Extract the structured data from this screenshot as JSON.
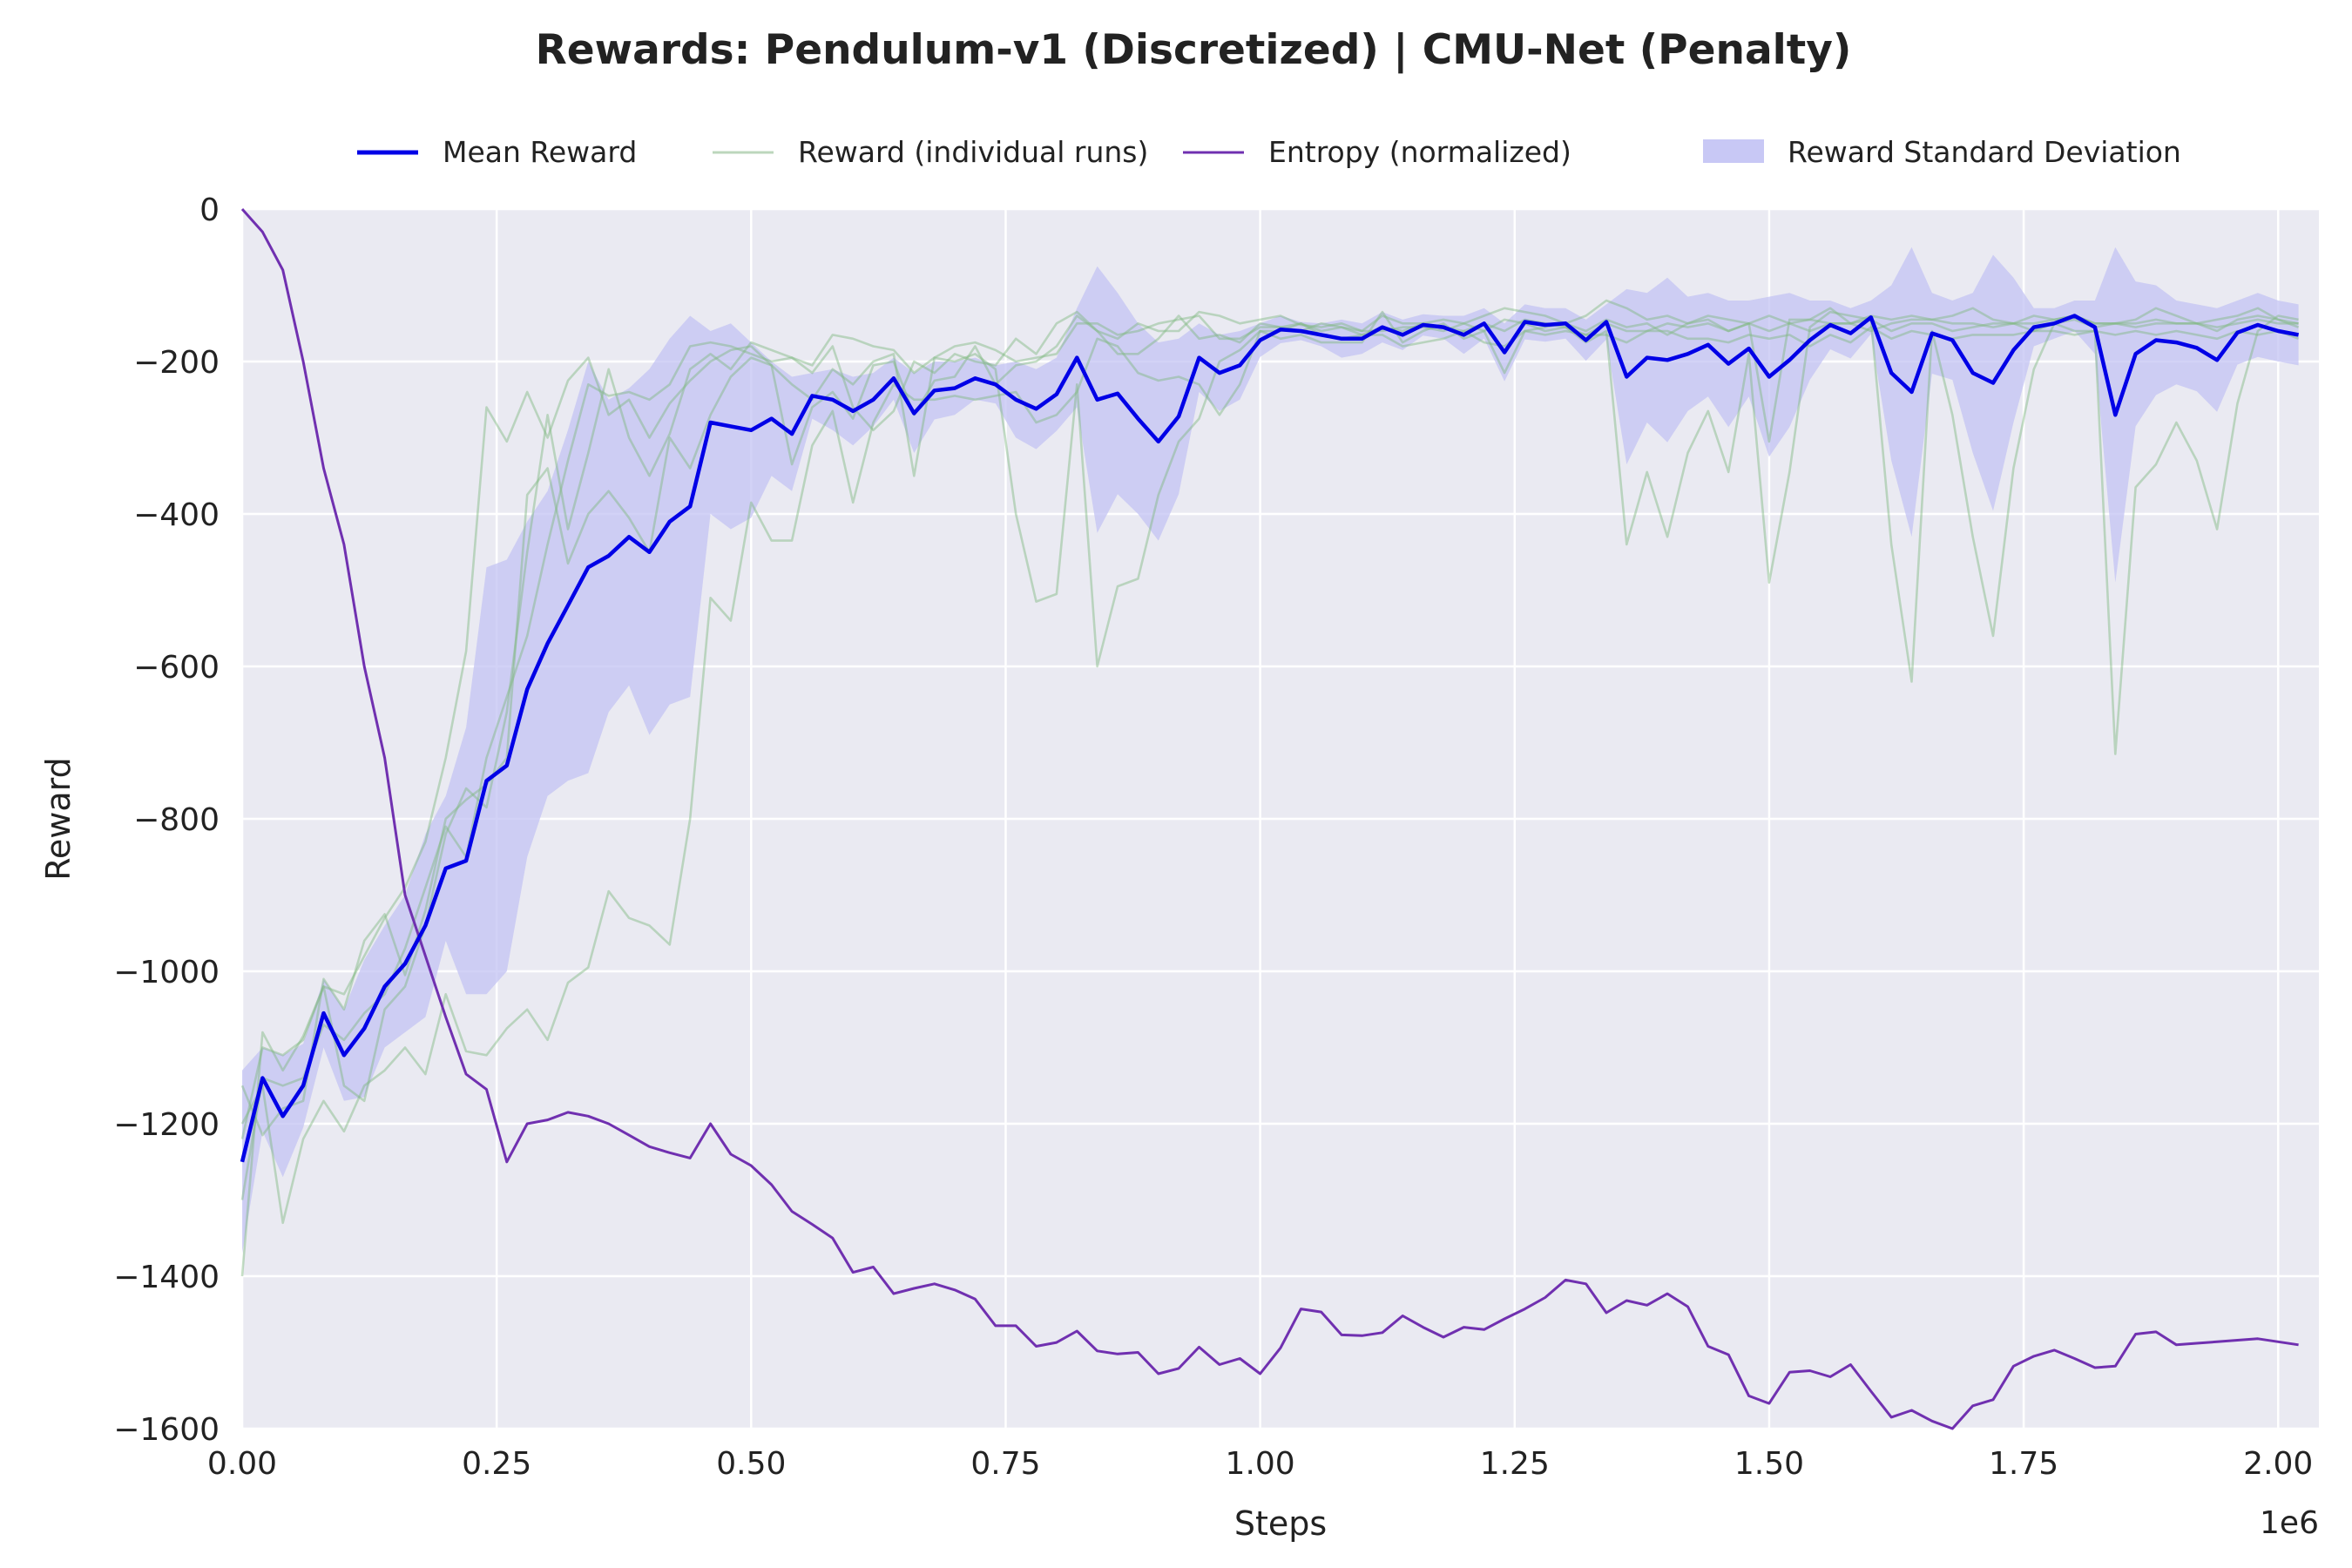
{
  "chart_data": {
    "type": "line",
    "title": "Rewards: Pendulum-v1 (Discretized) | CMU-Net (Penalty)",
    "xlabel": "Steps",
    "ylabel": "Reward",
    "x_offset_label": "1e6",
    "xlim": [
      0,
      2.04
    ],
    "ylim": [
      -1600,
      0
    ],
    "x_unit": "1e6 steps",
    "grid": true,
    "legend_position": "top-center",
    "xticks": [
      {
        "value": 0.0,
        "label": "0.00"
      },
      {
        "value": 0.25,
        "label": "0.25"
      },
      {
        "value": 0.5,
        "label": "0.50"
      },
      {
        "value": 0.75,
        "label": "0.75"
      },
      {
        "value": 1.0,
        "label": "1.00"
      },
      {
        "value": 1.25,
        "label": "1.25"
      },
      {
        "value": 1.5,
        "label": "1.50"
      },
      {
        "value": 1.75,
        "label": "1.75"
      },
      {
        "value": 2.0,
        "label": "2.00"
      }
    ],
    "yticks": [
      {
        "value": 0,
        "label": "0"
      },
      {
        "value": -200,
        "label": "−200"
      },
      {
        "value": -400,
        "label": "−400"
      },
      {
        "value": -600,
        "label": "−600"
      },
      {
        "value": -800,
        "label": "−800"
      },
      {
        "value": -1000,
        "label": "−1000"
      },
      {
        "value": -1200,
        "label": "−1200"
      },
      {
        "value": -1400,
        "label": "−1400"
      },
      {
        "value": -1600,
        "label": "−1600"
      }
    ],
    "legend": [
      {
        "label": "Mean Reward",
        "kind": "line",
        "color": "#0000e6"
      },
      {
        "label": "Reward (individual runs)",
        "kind": "line",
        "color": "#8fbc8f"
      },
      {
        "label": "Entropy (normalized)",
        "kind": "line",
        "color": "#7030b0"
      },
      {
        "label": "Reward Standard Deviation",
        "kind": "band",
        "color": "#c8c8f5"
      }
    ],
    "colors": {
      "mean": "#0000e6",
      "runs": "#7fb87f",
      "entropy": "#7030b0",
      "band": "#c3c3f3",
      "plot_bg": "#eaeaf2",
      "grid": "#ffffff"
    },
    "mean_reward": {
      "x": [
        0.0,
        0.02,
        0.04,
        0.06,
        0.08,
        0.1,
        0.12,
        0.14,
        0.16,
        0.18,
        0.2,
        0.22,
        0.24,
        0.26,
        0.28,
        0.3,
        0.32,
        0.34,
        0.36,
        0.38,
        0.4,
        0.42,
        0.44,
        0.46,
        0.48,
        0.5,
        0.52,
        0.54,
        0.56,
        0.58,
        0.6,
        0.62,
        0.64,
        0.66,
        0.68,
        0.7,
        0.72,
        0.74,
        0.76,
        0.78,
        0.8,
        0.82,
        0.84,
        0.86,
        0.88,
        0.9,
        0.92,
        0.94,
        0.96,
        0.98,
        1.0,
        1.02,
        1.04,
        1.06,
        1.08,
        1.1,
        1.12,
        1.14,
        1.16,
        1.18,
        1.2,
        1.22,
        1.24,
        1.26,
        1.28,
        1.3,
        1.32,
        1.34,
        1.36,
        1.38,
        1.4,
        1.42,
        1.44,
        1.46,
        1.48,
        1.5,
        1.52,
        1.54,
        1.56,
        1.58,
        1.6,
        1.62,
        1.64,
        1.66,
        1.68,
        1.7,
        1.72,
        1.74,
        1.76,
        1.78,
        1.8,
        1.82,
        1.84,
        1.86,
        1.88,
        1.9,
        1.92,
        1.94,
        1.96,
        1.98,
        2.0,
        2.02
      ],
      "y": [
        -1250,
        -1140,
        -1190,
        -1150,
        -1055,
        -1110,
        -1075,
        -1020,
        -990,
        -940,
        -865,
        -855,
        -750,
        -730,
        -630,
        -570,
        -520,
        -470,
        -455,
        -430,
        -450,
        -410,
        -390,
        -280,
        -285,
        -290,
        -275,
        -295,
        -245,
        -250,
        -265,
        -250,
        -222,
        -268,
        -238,
        -235,
        -222,
        -230,
        -250,
        -262,
        -243,
        -195,
        -250,
        -242,
        -275,
        -305,
        -272,
        -195,
        -215,
        -205,
        -172,
        -158,
        -160,
        -165,
        -170,
        -170,
        -155,
        -165,
        -152,
        -155,
        -165,
        -150,
        -188,
        -148,
        -152,
        -150,
        -172,
        -148,
        -220,
        -195,
        -198,
        -190,
        -178,
        -203,
        -183,
        -220,
        -198,
        -172,
        -152,
        -163,
        -142,
        -215,
        -240,
        -163,
        -172,
        -215,
        -228,
        -185,
        -155,
        -150,
        -140,
        -155,
        -270,
        -190,
        -172,
        -175,
        -182,
        -198,
        -162,
        -152,
        -160,
        -165
      ]
    },
    "std_band": {
      "upper": [
        -1130,
        -1100,
        -1110,
        -1095,
        -1010,
        -1050,
        -985,
        -940,
        -900,
        -820,
        -770,
        -680,
        -470,
        -460,
        -410,
        -370,
        -290,
        -200,
        -250,
        -235,
        -210,
        -170,
        -140,
        -160,
        -150,
        -175,
        -200,
        -220,
        -215,
        -210,
        -220,
        -215,
        -195,
        -215,
        -200,
        -200,
        -195,
        -205,
        -200,
        -210,
        -195,
        -130,
        -75,
        -110,
        -150,
        -175,
        -170,
        -150,
        -165,
        -160,
        -150,
        -140,
        -148,
        -150,
        -145,
        -150,
        -135,
        -145,
        -138,
        -140,
        -140,
        -130,
        -150,
        -125,
        -130,
        -130,
        -145,
        -125,
        -105,
        -110,
        -90,
        -115,
        -110,
        -120,
        -120,
        -115,
        -110,
        -120,
        -120,
        -130,
        -120,
        -100,
        -50,
        -110,
        -120,
        -110,
        -60,
        -90,
        -130,
        -130,
        -120,
        -120,
        -50,
        -95,
        -100,
        -120,
        -125,
        -130,
        -120,
        -110,
        -120,
        -125
      ],
      "lower": [
        -1370,
        -1210,
        -1270,
        -1205,
        -1100,
        -1170,
        -1165,
        -1100,
        -1080,
        -1060,
        -960,
        -1030,
        -1030,
        -1000,
        -850,
        -770,
        -750,
        -740,
        -660,
        -625,
        -690,
        -650,
        -640,
        -400,
        -420,
        -405,
        -350,
        -370,
        -275,
        -290,
        -310,
        -285,
        -250,
        -320,
        -276,
        -270,
        -250,
        -255,
        -300,
        -315,
        -291,
        -260,
        -425,
        -374,
        -400,
        -435,
        -374,
        -240,
        -265,
        -250,
        -194,
        -176,
        -172,
        -180,
        -195,
        -190,
        -175,
        -185,
        -166,
        -170,
        -190,
        -170,
        -226,
        -171,
        -174,
        -170,
        -199,
        -171,
        -335,
        -280,
        -306,
        -265,
        -246,
        -286,
        -246,
        -325,
        -286,
        -224,
        -184,
        -196,
        -164,
        -330,
        -430,
        -216,
        -224,
        -320,
        -396,
        -280,
        -180,
        -170,
        -160,
        -190,
        -490,
        -285,
        -244,
        -230,
        -239,
        -266,
        -204,
        -194,
        -200,
        -205
      ]
    },
    "individual_runs": [
      {
        "y": [
          -1150,
          -1215,
          -1180,
          -1170,
          -1010,
          -1050,
          -960,
          -925,
          -1005,
          -920,
          -800,
          -775,
          -755,
          -720,
          -375,
          -340,
          -465,
          -400,
          -370,
          -405,
          -450,
          -300,
          -340,
          -270,
          -220,
          -195,
          -205,
          -335,
          -260,
          -240,
          -275,
          -205,
          -200,
          -270,
          -225,
          -220,
          -180,
          -230,
          -205,
          -200,
          -180,
          -140,
          -160,
          -170,
          -150,
          -160,
          -160,
          -135,
          -140,
          -150,
          -145,
          -140,
          -152,
          -155,
          -150,
          -160,
          -140,
          -150,
          -150,
          -145,
          -150,
          -140,
          -130,
          -135,
          -140,
          -150,
          -140,
          -120,
          -130,
          -145,
          -140,
          -150,
          -140,
          -145,
          -150,
          -140,
          -150,
          -145,
          -130,
          -150,
          -140,
          -145,
          -140,
          -145,
          -140,
          -130,
          -145,
          -150,
          -140,
          -145,
          -140,
          -150,
          -150,
          -145,
          -130,
          -140,
          -150,
          -145,
          -140,
          -130,
          -145,
          -150
        ]
      },
      {
        "y": [
          -1400,
          -1080,
          -1130,
          -1085,
          -1020,
          -1030,
          -980,
          -930,
          -890,
          -830,
          -720,
          -580,
          -260,
          -305,
          -240,
          -300,
          -225,
          -195,
          -270,
          -250,
          -300,
          -255,
          -225,
          -200,
          -185,
          -180,
          -205,
          -230,
          -250,
          -210,
          -230,
          -200,
          -190,
          -350,
          -195,
          -200,
          -190,
          -210,
          -400,
          -515,
          -505,
          -230,
          -600,
          -495,
          -485,
          -375,
          -305,
          -275,
          -200,
          -185,
          -160,
          -170,
          -165,
          -175,
          -175,
          -175,
          -135,
          -175,
          -160,
          -150,
          -170,
          -160,
          -145,
          -150,
          -160,
          -155,
          -175,
          -160,
          -440,
          -345,
          -430,
          -320,
          -265,
          -345,
          -190,
          -490,
          -345,
          -155,
          -135,
          -140,
          -145,
          -440,
          -620,
          -160,
          -270,
          -430,
          -560,
          -340,
          -210,
          -150,
          -160,
          -160,
          -715,
          -365,
          -335,
          -280,
          -330,
          -420,
          -255,
          -160,
          -140,
          -145
        ]
      },
      {
        "y": [
          -1220,
          -1100,
          -1110,
          -1090,
          -1020,
          -1150,
          -1170,
          -1050,
          -1020,
          -940,
          -820,
          -760,
          -785,
          -660,
          -450,
          -270,
          -420,
          -320,
          -210,
          -300,
          -350,
          -295,
          -210,
          -190,
          -210,
          -175,
          -185,
          -195,
          -215,
          -180,
          -260,
          -290,
          -265,
          -200,
          -215,
          -190,
          -200,
          -205,
          -170,
          -190,
          -150,
          -135,
          -160,
          -190,
          -190,
          -170,
          -140,
          -170,
          -165,
          -175,
          -150,
          -155,
          -160,
          -150,
          -155,
          -160,
          -160,
          -155,
          -155,
          -160,
          -150,
          -160,
          -215,
          -160,
          -155,
          -150,
          -160,
          -145,
          -155,
          -150,
          -165,
          -150,
          -145,
          -160,
          -150,
          -305,
          -145,
          -145,
          -150,
          -150,
          -160,
          -150,
          -145,
          -145,
          -150,
          -150,
          -155,
          -150,
          -150,
          -145,
          -140,
          -150,
          -150,
          -150,
          -145,
          -150,
          -150,
          -160,
          -145,
          -140,
          -145,
          -155
        ]
      },
      {
        "y": [
          -1300,
          -1140,
          -1150,
          -1140,
          -1070,
          -1090,
          -1055,
          -1030,
          -970,
          -890,
          -810,
          -850,
          -720,
          -640,
          -560,
          -440,
          -330,
          -230,
          -245,
          -240,
          -250,
          -230,
          -180,
          -175,
          -180,
          -190,
          -200,
          -195,
          -205,
          -165,
          -170,
          -180,
          -185,
          -215,
          -195,
          -180,
          -175,
          -185,
          -200,
          -195,
          -190,
          -150,
          -150,
          -165,
          -160,
          -150,
          -145,
          -140,
          -170,
          -170,
          -155,
          -155,
          -150,
          -160,
          -155,
          -165,
          -155,
          -160,
          -150,
          -155,
          -160,
          -150,
          -160,
          -145,
          -150,
          -155,
          -165,
          -150,
          -160,
          -160,
          -150,
          -155,
          -150,
          -160,
          -150,
          -160,
          -150,
          -160,
          -150,
          -150,
          -145,
          -160,
          -150,
          -150,
          -160,
          -155,
          -150,
          -150,
          -160,
          -150,
          -145,
          -155,
          -150,
          -155,
          -150,
          -150,
          -150,
          -155,
          -150,
          -145,
          -150,
          -150
        ]
      },
      {
        "y": [
          -1200,
          -1150,
          -1330,
          -1220,
          -1170,
          -1210,
          -1150,
          -1130,
          -1100,
          -1135,
          -1030,
          -1105,
          -1110,
          -1075,
          -1050,
          -1090,
          -1015,
          -995,
          -895,
          -930,
          -940,
          -965,
          -800,
          -510,
          -540,
          -385,
          -435,
          -435,
          -310,
          -265,
          -385,
          -280,
          -230,
          -250,
          -250,
          -245,
          -250,
          -245,
          -240,
          -280,
          -270,
          -240,
          -170,
          -180,
          -215,
          -225,
          -220,
          -230,
          -270,
          -230,
          -160,
          -160,
          -150,
          -165,
          -170,
          -165,
          -165,
          -180,
          -175,
          -170,
          -160,
          -175,
          -180,
          -160,
          -165,
          -160,
          -165,
          -165,
          -175,
          -160,
          -160,
          -170,
          -170,
          -175,
          -165,
          -170,
          -165,
          -180,
          -165,
          -175,
          -155,
          -170,
          -160,
          -165,
          -170,
          -165,
          -165,
          -165,
          -160,
          -160,
          -165,
          -160,
          -165,
          -160,
          -165,
          -160,
          -165,
          -170,
          -160,
          -165,
          -160,
          -170
        ]
      }
    ],
    "entropy_normalized": {
      "x": [
        0.0,
        0.02,
        0.04,
        0.06,
        0.08,
        0.1,
        0.12,
        0.14,
        0.16,
        0.18,
        0.2,
        0.22,
        0.24,
        0.26,
        0.28,
        0.3,
        0.32,
        0.34,
        0.36,
        0.38,
        0.4,
        0.42,
        0.44,
        0.46,
        0.48,
        0.5,
        0.52,
        0.54,
        0.56,
        0.58,
        0.6,
        0.62,
        0.64,
        0.66,
        0.68,
        0.7,
        0.72,
        0.74,
        0.76,
        0.78,
        0.8,
        0.82,
        0.84,
        0.86,
        0.88,
        0.9,
        0.92,
        0.94,
        0.96,
        0.98,
        1.0,
        1.02,
        1.04,
        1.06,
        1.08,
        1.1,
        1.12,
        1.14,
        1.16,
        1.18,
        1.2,
        1.22,
        1.24,
        1.26,
        1.28,
        1.3,
        1.32,
        1.34,
        1.36,
        1.38,
        1.4,
        1.42,
        1.44,
        1.46,
        1.48,
        1.5,
        1.52,
        1.54,
        1.56,
        1.58,
        1.6,
        1.62,
        1.64,
        1.66,
        1.68,
        1.7,
        1.72,
        1.74,
        1.76,
        1.78,
        1.8,
        1.82,
        1.84,
        1.86,
        1.88,
        1.9,
        1.92,
        1.94,
        1.96,
        1.98,
        2.0,
        2.02
      ],
      "y": [
        0,
        -30,
        -80,
        -200,
        -340,
        -440,
        -600,
        -720,
        -900,
        -980,
        -1060,
        -1135,
        -1155,
        -1250,
        -1200,
        -1195,
        -1185,
        -1190,
        -1200,
        -1215,
        -1230,
        -1238,
        -1245,
        -1200,
        -1240,
        -1255,
        -1280,
        -1315,
        -1332,
        -1350,
        -1395,
        -1388,
        -1423,
        -1416,
        -1410,
        -1418,
        -1430,
        -1465,
        -1465,
        -1492,
        -1487,
        -1472,
        -1498,
        -1502,
        -1500,
        -1528,
        -1521,
        -1493,
        -1516,
        -1508,
        -1528,
        -1494,
        -1443,
        -1447,
        -1477,
        -1478,
        -1474,
        -1452,
        -1467,
        -1480,
        -1467,
        -1470,
        -1456,
        -1443,
        -1428,
        -1405,
        -1410,
        -1448,
        -1432,
        -1438,
        -1423,
        -1440,
        -1492,
        -1503,
        -1557,
        -1567,
        -1526,
        -1524,
        -1532,
        -1516,
        -1551,
        -1585,
        -1576,
        -1590,
        -1600,
        -1570,
        -1562,
        -1518,
        -1505,
        -1497,
        -1508,
        -1520,
        -1518,
        -1476,
        -1473,
        -1490,
        -1488,
        -1486,
        -1484,
        -1482,
        -1486,
        -1490
      ]
    }
  }
}
